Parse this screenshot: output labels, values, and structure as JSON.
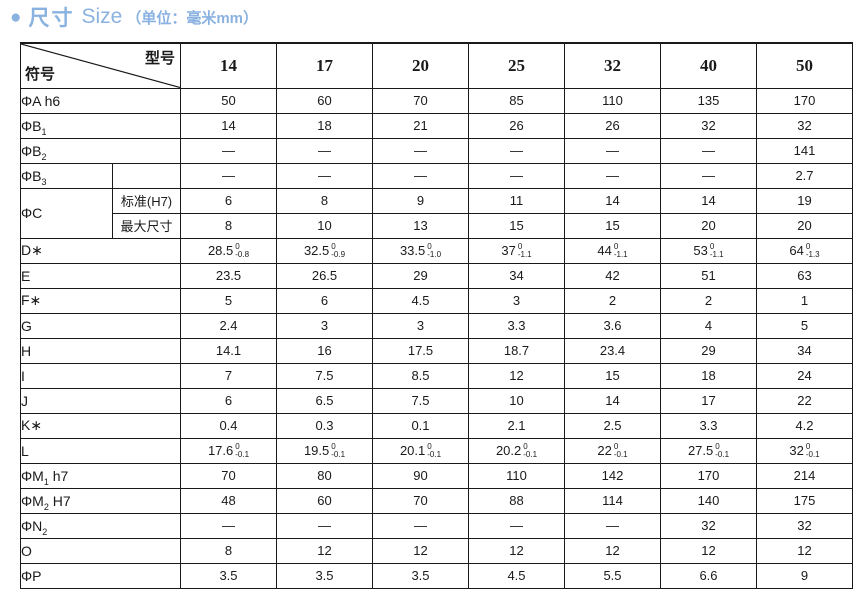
{
  "title": {
    "bullet_icon": "●",
    "heading_cn": "尺寸",
    "heading_en": "Size",
    "unit_note": "（单位：毫米mm）"
  },
  "colors": {
    "accent_blue": "#8ab2e0",
    "border": "#1a1a1a",
    "text": "#1a1a1a"
  },
  "table": {
    "corner": {
      "model_label": "型号",
      "symbol_label": "符号"
    },
    "columns": [
      "14",
      "17",
      "20",
      "25",
      "32",
      "40",
      "50"
    ],
    "rows": [
      {
        "label": {
          "text": "ΦA h6"
        },
        "cells": [
          "50",
          "60",
          "70",
          "85",
          "110",
          "135",
          "170"
        ]
      },
      {
        "label": {
          "text": "ΦB",
          "sub": "1"
        },
        "cells": [
          "14",
          "18",
          "21",
          "26",
          "26",
          "32",
          "32"
        ]
      },
      {
        "label": {
          "text": "ΦB",
          "sub": "2"
        },
        "cells": [
          "—",
          "—",
          "—",
          "—",
          "—",
          "—",
          "141"
        ]
      },
      {
        "label": {
          "text": "ΦB",
          "sub": "3"
        },
        "sublabel": "",
        "cells": [
          "—",
          "—",
          "—",
          "—",
          "—",
          "—",
          "2.7"
        ]
      },
      {
        "label": {
          "text": "ΦC"
        },
        "rowspan": 2,
        "sublabel": "标准(H7)",
        "cells": [
          "6",
          "8",
          "9",
          "11",
          "14",
          "14",
          "19"
        ]
      },
      {
        "label": null,
        "sublabel": "最大尺寸",
        "cells": [
          "8",
          "10",
          "13",
          "15",
          "15",
          "20",
          "20"
        ]
      },
      {
        "label": {
          "text": "D∗"
        },
        "cells": [
          {
            "v": "28.5",
            "top": "0",
            "bot": "-0.8"
          },
          {
            "v": "32.5",
            "top": "0",
            "bot": "-0.9"
          },
          {
            "v": "33.5",
            "top": "0",
            "bot": "-1.0"
          },
          {
            "v": "37",
            "top": "0",
            "bot": "-1.1"
          },
          {
            "v": "44",
            "top": "0",
            "bot": "-1.1"
          },
          {
            "v": "53",
            "top": "0",
            "bot": "-1.1"
          },
          {
            "v": "64",
            "top": "0",
            "bot": "-1.3"
          }
        ]
      },
      {
        "label": {
          "text": "E"
        },
        "cells": [
          "23.5",
          "26.5",
          "29",
          "34",
          "42",
          "51",
          "63"
        ]
      },
      {
        "label": {
          "text": "F∗"
        },
        "cells": [
          "5",
          "6",
          "4.5",
          "3",
          "2",
          "2",
          "1"
        ]
      },
      {
        "label": {
          "text": "G"
        },
        "cells": [
          "2.4",
          "3",
          "3",
          "3.3",
          "3.6",
          "4",
          "5"
        ]
      },
      {
        "label": {
          "text": "H"
        },
        "cells": [
          "14.1",
          "16",
          "17.5",
          "18.7",
          "23.4",
          "29",
          "34"
        ]
      },
      {
        "label": {
          "text": "I"
        },
        "cells": [
          "7",
          "7.5",
          "8.5",
          "12",
          "15",
          "18",
          "24"
        ]
      },
      {
        "label": {
          "text": "J"
        },
        "cells": [
          "6",
          "6.5",
          "7.5",
          "10",
          "14",
          "17",
          "22"
        ]
      },
      {
        "label": {
          "text": "K∗"
        },
        "cells": [
          "0.4",
          "0.3",
          "0.1",
          "2.1",
          "2.5",
          "3.3",
          "4.2"
        ]
      },
      {
        "label": {
          "text": "L"
        },
        "cells": [
          {
            "v": "17.6",
            "top": "0",
            "bot": "-0.1"
          },
          {
            "v": "19.5",
            "top": "0",
            "bot": "-0.1"
          },
          {
            "v": "20.1",
            "top": "0",
            "bot": "-0.1"
          },
          {
            "v": "20.2",
            "top": "0",
            "bot": "-0.1"
          },
          {
            "v": "22",
            "top": "0",
            "bot": "-0.1"
          },
          {
            "v": "27.5",
            "top": "0",
            "bot": "-0.1"
          },
          {
            "v": "32",
            "top": "0",
            "bot": "-0.1"
          }
        ]
      },
      {
        "label": {
          "text": "ΦM",
          "sub": "1",
          "post": " h7"
        },
        "cells": [
          "70",
          "80",
          "90",
          "110",
          "142",
          "170",
          "214"
        ]
      },
      {
        "label": {
          "text": "ΦM",
          "sub": "2",
          "post": " H7"
        },
        "cells": [
          "48",
          "60",
          "70",
          "88",
          "114",
          "140",
          "175"
        ]
      },
      {
        "label": {
          "text": "ΦN",
          "sub": "2"
        },
        "cells": [
          "—",
          "—",
          "—",
          "—",
          "—",
          "32",
          "32"
        ]
      },
      {
        "label": {
          "text": "O"
        },
        "cells": [
          "8",
          "12",
          "12",
          "12",
          "12",
          "12",
          "12"
        ]
      },
      {
        "label": {
          "text": "ΦP"
        },
        "cells": [
          "3.5",
          "3.5",
          "3.5",
          "4.5",
          "5.5",
          "6.6",
          "9"
        ]
      }
    ]
  }
}
